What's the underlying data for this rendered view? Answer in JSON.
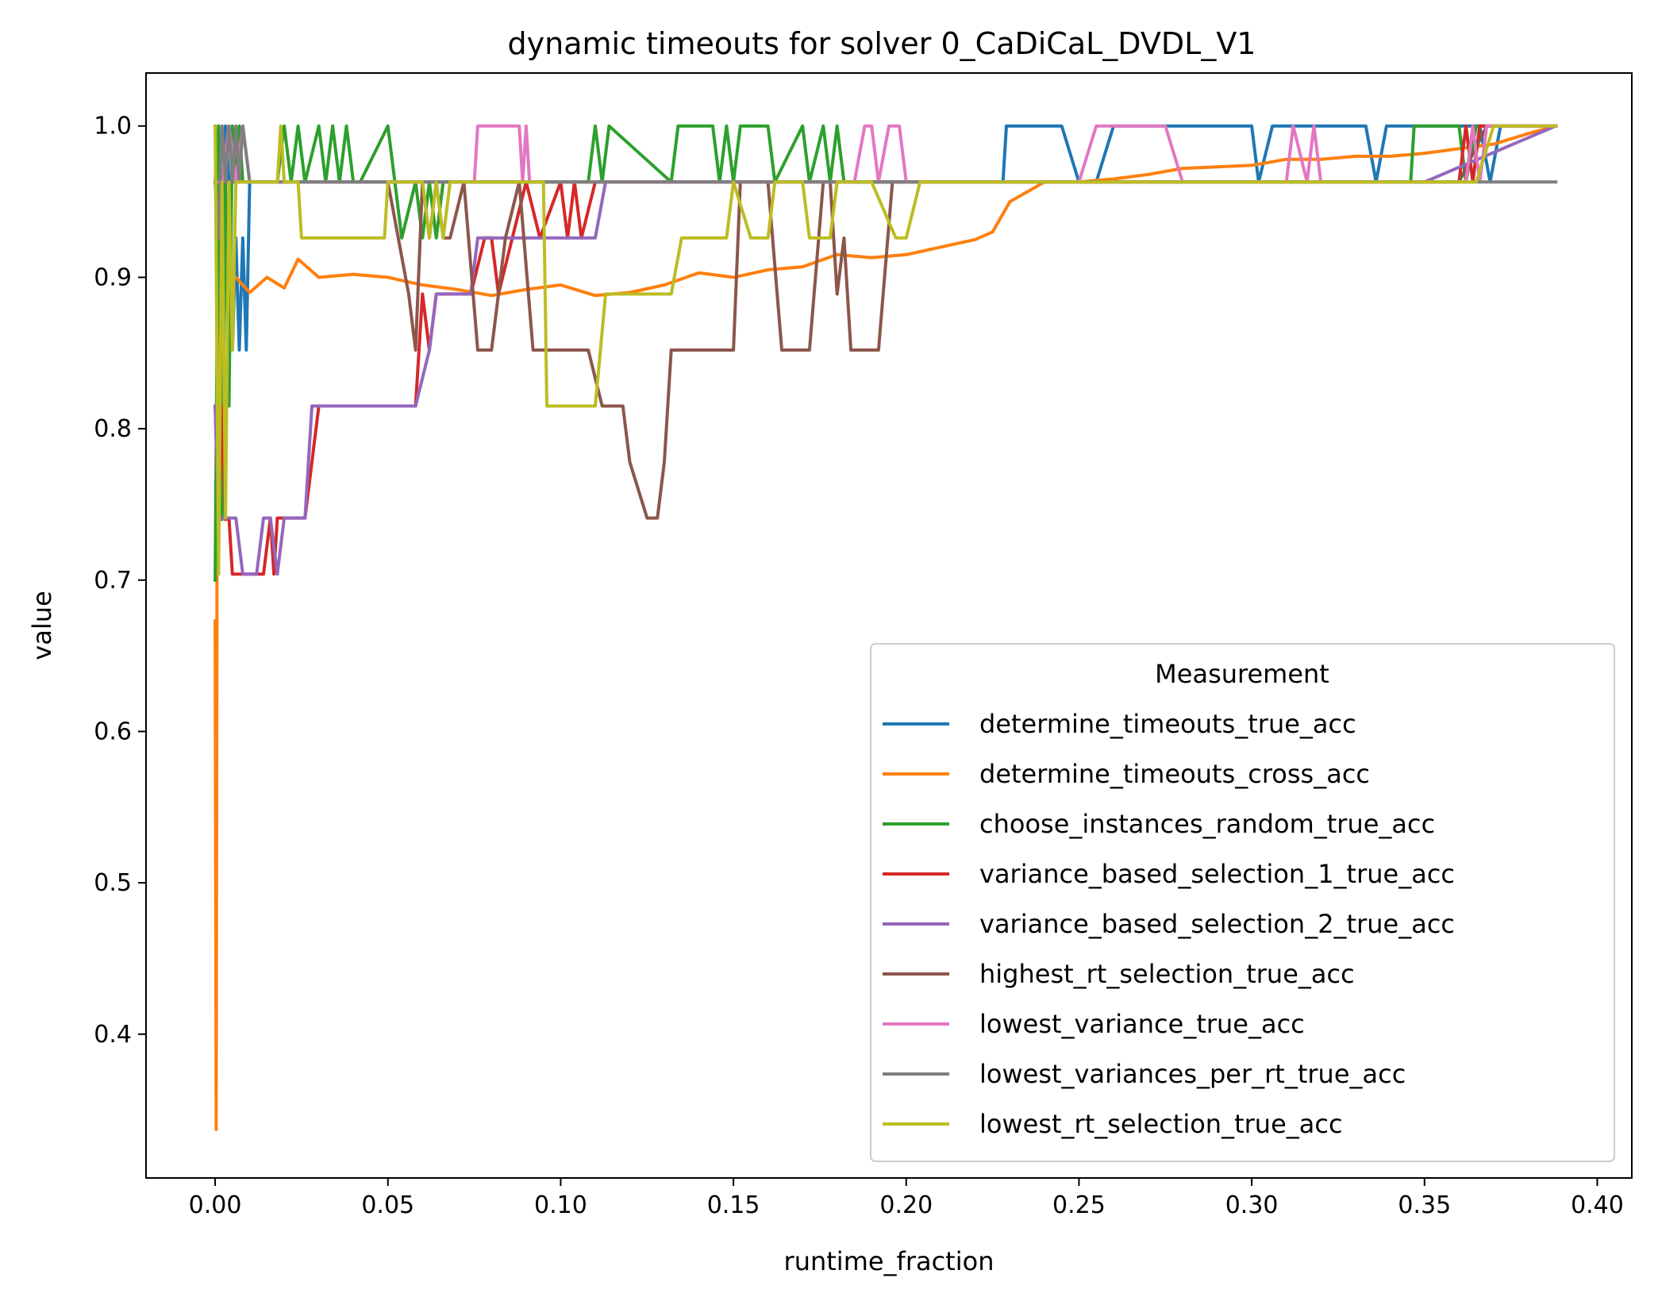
{
  "chart_data": {
    "type": "line",
    "title": "dynamic timeouts for solver 0_CaDiCaL_DVDL_V1",
    "xlabel": "runtime_fraction",
    "ylabel": "value",
    "xlim": [
      -0.02,
      0.41
    ],
    "ylim": [
      0.305,
      1.035
    ],
    "xticks": [
      "0.00",
      "0.05",
      "0.10",
      "0.15",
      "0.20",
      "0.25",
      "0.30",
      "0.35",
      "0.40"
    ],
    "xtick_values": [
      0,
      0.05,
      0.1,
      0.15,
      0.2,
      0.25,
      0.3,
      0.35,
      0.4
    ],
    "yticks": [
      "0.4",
      "0.5",
      "0.6",
      "0.7",
      "0.8",
      "0.9",
      "1.0"
    ],
    "ytick_values": [
      0.4,
      0.5,
      0.6,
      0.7,
      0.8,
      0.9,
      1.0
    ],
    "grid": false,
    "legend": {
      "title": "Measurement",
      "placement": "lower-right"
    },
    "series": [
      {
        "name": "determine_timeouts_true_acc",
        "color": "#1f77b4",
        "x": [
          0,
          0.001,
          0.002,
          0.003,
          0.004,
          0.005,
          0.006,
          0.007,
          0.008,
          0.009,
          0.01,
          0.011,
          0.05,
          0.1,
          0.15,
          0.2,
          0.228,
          0.229,
          0.24,
          0.245,
          0.25,
          0.255,
          0.26,
          0.262,
          0.27,
          0.3,
          0.302,
          0.306,
          0.32,
          0.333,
          0.336,
          0.339,
          0.36,
          0.366,
          0.369,
          0.372,
          0.375,
          0.388
        ],
        "y": [
          0.963,
          1.0,
          0.926,
          1.0,
          0.963,
          0.852,
          0.926,
          0.852,
          0.926,
          0.852,
          0.963,
          0.963,
          0.963,
          0.963,
          0.963,
          0.963,
          0.963,
          1.0,
          1.0,
          1.0,
          0.963,
          0.963,
          1.0,
          1.0,
          1.0,
          1.0,
          0.963,
          1.0,
          1.0,
          1.0,
          0.963,
          1.0,
          1.0,
          1.0,
          0.963,
          1.0,
          1.0,
          1.0
        ]
      },
      {
        "name": "determine_timeouts_cross_acc",
        "color": "#ff7f0e",
        "x": [
          0,
          0.0003,
          0.0006,
          0.001,
          0.002,
          0.004,
          0.006,
          0.008,
          0.01,
          0.015,
          0.02,
          0.024,
          0.03,
          0.04,
          0.05,
          0.06,
          0.07,
          0.08,
          0.09,
          0.1,
          0.11,
          0.12,
          0.13,
          0.14,
          0.15,
          0.16,
          0.17,
          0.18,
          0.19,
          0.2,
          0.21,
          0.22,
          0.225,
          0.23,
          0.24,
          0.25,
          0.26,
          0.27,
          0.28,
          0.29,
          0.3,
          0.31,
          0.32,
          0.33,
          0.34,
          0.35,
          0.36,
          0.37,
          0.38,
          0.388
        ],
        "y": [
          0.673,
          0.337,
          0.8,
          0.86,
          0.88,
          0.895,
          0.9,
          0.895,
          0.89,
          0.9,
          0.893,
          0.912,
          0.9,
          0.902,
          0.9,
          0.895,
          0.892,
          0.888,
          0.892,
          0.895,
          0.888,
          0.89,
          0.895,
          0.903,
          0.9,
          0.905,
          0.907,
          0.915,
          0.913,
          0.915,
          0.92,
          0.925,
          0.93,
          0.95,
          0.963,
          0.963,
          0.965,
          0.968,
          0.972,
          0.973,
          0.974,
          0.978,
          0.978,
          0.98,
          0.98,
          0.982,
          0.985,
          0.988,
          0.995,
          1.0
        ]
      },
      {
        "name": "choose_instances_random_true_acc",
        "color": "#2ca02c",
        "x": [
          0,
          0.001,
          0.002,
          0.003,
          0.004,
          0.005,
          0.006,
          0.007,
          0.008,
          0.01,
          0.018,
          0.02,
          0.022,
          0.024,
          0.026,
          0.03,
          0.032,
          0.034,
          0.036,
          0.038,
          0.04,
          0.042,
          0.05,
          0.052,
          0.054,
          0.058,
          0.06,
          0.062,
          0.064,
          0.066,
          0.07,
          0.08,
          0.1,
          0.108,
          0.11,
          0.112,
          0.114,
          0.132,
          0.134,
          0.144,
          0.146,
          0.148,
          0.15,
          0.152,
          0.16,
          0.162,
          0.17,
          0.172,
          0.176,
          0.178,
          0.18,
          0.182,
          0.185,
          0.19,
          0.2,
          0.25,
          0.3,
          0.346,
          0.347,
          0.36,
          0.362,
          0.365,
          0.388
        ],
        "y": [
          0.7,
          1.0,
          0.74,
          0.963,
          0.815,
          1.0,
          0.963,
          1.0,
          0.963,
          0.963,
          0.963,
          1.0,
          0.963,
          1.0,
          0.963,
          1.0,
          0.963,
          1.0,
          0.963,
          1.0,
          0.963,
          0.963,
          1.0,
          0.963,
          0.926,
          0.963,
          0.926,
          0.963,
          0.926,
          0.963,
          0.963,
          0.963,
          0.963,
          0.963,
          1.0,
          0.963,
          1.0,
          0.963,
          1.0,
          1.0,
          0.963,
          1.0,
          0.963,
          1.0,
          1.0,
          0.963,
          1.0,
          0.963,
          1.0,
          0.963,
          1.0,
          0.963,
          0.963,
          0.963,
          0.963,
          0.963,
          0.963,
          0.963,
          1.0,
          1.0,
          0.963,
          1.0,
          1.0
        ]
      },
      {
        "name": "variance_based_selection_1_true_acc",
        "color": "#d62728",
        "x": [
          0,
          0.001,
          0.002,
          0.003,
          0.004,
          0.005,
          0.006,
          0.01,
          0.014,
          0.016,
          0.017,
          0.018,
          0.026,
          0.028,
          0.03,
          0.04,
          0.058,
          0.06,
          0.062,
          0.064,
          0.066,
          0.07,
          0.072,
          0.074,
          0.078,
          0.08,
          0.082,
          0.086,
          0.09,
          0.094,
          0.1,
          0.102,
          0.104,
          0.106,
          0.11,
          0.111,
          0.15,
          0.2,
          0.25,
          0.3,
          0.36,
          0.362,
          0.364,
          0.366,
          0.368,
          0.388
        ],
        "y": [
          0.815,
          0.74,
          0.815,
          0.74,
          0.741,
          0.704,
          0.704,
          0.704,
          0.704,
          0.741,
          0.704,
          0.741,
          0.741,
          0.778,
          0.815,
          0.815,
          0.815,
          0.889,
          0.852,
          0.889,
          0.889,
          0.889,
          0.889,
          0.889,
          0.926,
          0.926,
          0.889,
          0.926,
          0.963,
          0.926,
          0.963,
          0.926,
          0.963,
          0.926,
          0.963,
          0.963,
          0.963,
          0.963,
          0.963,
          0.963,
          0.963,
          1.0,
          0.963,
          1.0,
          1.0,
          1.0
        ]
      },
      {
        "name": "variance_based_selection_2_true_acc",
        "color": "#9467bd",
        "x": [
          0,
          0.001,
          0.002,
          0.004,
          0.006,
          0.008,
          0.012,
          0.014,
          0.016,
          0.018,
          0.02,
          0.026,
          0.028,
          0.04,
          0.058,
          0.062,
          0.064,
          0.066,
          0.074,
          0.076,
          0.086,
          0.09,
          0.1,
          0.11,
          0.113,
          0.15,
          0.2,
          0.25,
          0.3,
          0.35,
          0.388
        ],
        "y": [
          0.815,
          0.741,
          0.741,
          0.741,
          0.741,
          0.704,
          0.704,
          0.741,
          0.741,
          0.704,
          0.741,
          0.741,
          0.815,
          0.815,
          0.815,
          0.852,
          0.889,
          0.889,
          0.889,
          0.926,
          0.926,
          0.926,
          0.926,
          0.926,
          0.963,
          0.963,
          0.963,
          0.963,
          0.963,
          0.963,
          1.0
        ]
      },
      {
        "name": "highest_rt_selection_true_acc",
        "color": "#8c564b",
        "x": [
          0,
          0.01,
          0.05,
          0.056,
          0.058,
          0.06,
          0.062,
          0.064,
          0.066,
          0.068,
          0.072,
          0.076,
          0.08,
          0.084,
          0.088,
          0.092,
          0.096,
          0.1,
          0.108,
          0.112,
          0.114,
          0.118,
          0.12,
          0.125,
          0.128,
          0.13,
          0.132,
          0.134,
          0.138,
          0.15,
          0.152,
          0.156,
          0.16,
          0.164,
          0.168,
          0.172,
          0.176,
          0.178,
          0.18,
          0.182,
          0.184,
          0.188,
          0.19,
          0.192,
          0.196,
          0.2,
          0.25,
          0.3,
          0.36,
          0.368,
          0.388
        ],
        "y": [
          0.963,
          0.963,
          0.963,
          0.889,
          0.852,
          0.963,
          0.926,
          0.963,
          0.926,
          0.926,
          0.963,
          0.852,
          0.852,
          0.926,
          0.963,
          0.852,
          0.852,
          0.852,
          0.852,
          0.815,
          0.815,
          0.815,
          0.778,
          0.741,
          0.741,
          0.778,
          0.852,
          0.852,
          0.852,
          0.852,
          0.963,
          0.963,
          0.963,
          0.852,
          0.852,
          0.852,
          0.963,
          0.963,
          0.889,
          0.926,
          0.852,
          0.852,
          0.852,
          0.852,
          0.963,
          0.963,
          0.963,
          0.963,
          0.963,
          1.0,
          1.0
        ]
      },
      {
        "name": "lowest_variance_true_acc",
        "color": "#e377c2",
        "x": [
          0,
          0.002,
          0.004,
          0.006,
          0.008,
          0.01,
          0.05,
          0.075,
          0.076,
          0.088,
          0.089,
          0.09,
          0.091,
          0.1,
          0.15,
          0.185,
          0.188,
          0.19,
          0.192,
          0.195,
          0.198,
          0.2,
          0.25,
          0.255,
          0.275,
          0.28,
          0.3,
          0.31,
          0.312,
          0.316,
          0.318,
          0.32,
          0.35,
          0.362,
          0.364,
          0.366,
          0.368,
          0.388
        ],
        "y": [
          0.963,
          0.963,
          1.0,
          0.963,
          1.0,
          0.963,
          0.963,
          0.963,
          1.0,
          1.0,
          0.963,
          1.0,
          0.963,
          0.963,
          0.963,
          0.963,
          1.0,
          1.0,
          0.963,
          1.0,
          1.0,
          0.963,
          0.963,
          1.0,
          1.0,
          0.963,
          0.963,
          0.963,
          1.0,
          0.963,
          1.0,
          0.963,
          0.963,
          0.963,
          1.0,
          0.963,
          1.0,
          1.0
        ]
      },
      {
        "name": "lowest_variances_per_rt_true_acc",
        "color": "#7f7f7f",
        "x": [
          0,
          0.001,
          0.002,
          0.003,
          0.004,
          0.005,
          0.006,
          0.007,
          0.008,
          0.01,
          0.1,
          0.2,
          0.3,
          0.388
        ],
        "y": [
          0.963,
          0.926,
          1.0,
          0.963,
          1.0,
          0.963,
          1.0,
          0.963,
          1.0,
          0.963,
          0.963,
          0.963,
          0.963,
          0.963
        ]
      },
      {
        "name": "lowest_rt_selection_true_acc",
        "color": "#bcbd22",
        "x": [
          0,
          0.001,
          0.002,
          0.003,
          0.004,
          0.005,
          0.006,
          0.008,
          0.01,
          0.018,
          0.019,
          0.02,
          0.024,
          0.025,
          0.03,
          0.04,
          0.049,
          0.05,
          0.06,
          0.062,
          0.064,
          0.066,
          0.068,
          0.07,
          0.08,
          0.095,
          0.096,
          0.1,
          0.108,
          0.11,
          0.113,
          0.12,
          0.13,
          0.132,
          0.135,
          0.14,
          0.148,
          0.15,
          0.155,
          0.16,
          0.162,
          0.17,
          0.172,
          0.178,
          0.18,
          0.19,
          0.197,
          0.2,
          0.204,
          0.25,
          0.3,
          0.35,
          0.365,
          0.37,
          0.388
        ],
        "y": [
          1.0,
          0.704,
          0.963,
          0.741,
          0.963,
          0.852,
          0.963,
          0.963,
          0.963,
          0.963,
          1.0,
          0.963,
          0.963,
          0.926,
          0.926,
          0.926,
          0.926,
          0.963,
          0.963,
          0.926,
          0.963,
          0.926,
          0.963,
          0.963,
          0.963,
          0.963,
          0.815,
          0.815,
          0.815,
          0.815,
          0.889,
          0.889,
          0.889,
          0.889,
          0.926,
          0.926,
          0.926,
          0.963,
          0.926,
          0.926,
          0.963,
          0.963,
          0.926,
          0.926,
          0.963,
          0.963,
          0.926,
          0.926,
          0.963,
          0.963,
          0.963,
          0.963,
          0.963,
          1.0,
          1.0
        ]
      }
    ]
  }
}
